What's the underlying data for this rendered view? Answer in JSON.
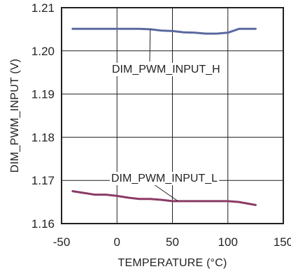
{
  "chart_data": {
    "type": "line",
    "xlabel": "TEMPERATURE (°C)",
    "ylabel": "DIM_PWM_INPUT (V)",
    "xlim": [
      -50,
      150
    ],
    "ylim": [
      1.16,
      1.21
    ],
    "x_ticks": [
      "-50",
      "0",
      "50",
      "100",
      "150"
    ],
    "y_ticks": [
      "1.16",
      "1.17",
      "1.18",
      "1.19",
      "1.20",
      "1.21"
    ],
    "grid": true,
    "series": [
      {
        "name": "DIM_PWM_INPUT_H",
        "color": "#5a6aa0",
        "x": [
          -40,
          -20,
          0,
          20,
          30,
          40,
          50,
          60,
          70,
          80,
          90,
          100,
          110,
          125
        ],
        "y": [
          1.2051,
          1.2051,
          1.2051,
          1.2051,
          1.205,
          1.2047,
          1.2046,
          1.2043,
          1.2042,
          1.204,
          1.204,
          1.2042,
          1.2051,
          1.2051
        ]
      },
      {
        "name": "DIM_PWM_INPUT_L",
        "color": "#8b3a67",
        "x": [
          -40,
          -30,
          -20,
          -10,
          0,
          10,
          20,
          30,
          40,
          50,
          60,
          70,
          80,
          90,
          100,
          110,
          125
        ],
        "y": [
          1.1675,
          1.1671,
          1.1667,
          1.1667,
          1.1664,
          1.166,
          1.1657,
          1.1657,
          1.1655,
          1.1652,
          1.1652,
          1.1652,
          1.1652,
          1.1652,
          1.1652,
          1.165,
          1.1643
        ]
      }
    ],
    "annotations": [
      {
        "text": "DIM_PWM_INPUT_H",
        "series": 0
      },
      {
        "text": "DIM_PWM_INPUT_L",
        "series": 1
      }
    ]
  }
}
